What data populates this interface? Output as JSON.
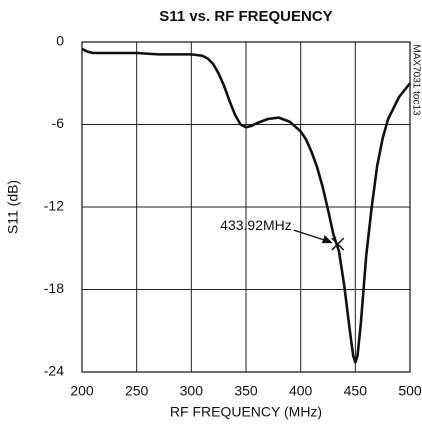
{
  "chart_data": {
    "type": "line",
    "title": "S11 vs. RF FREQUENCY",
    "x_label": "RF FREQUENCY (MHz)",
    "y_label": "S11 (dB)",
    "figure_id": "MAX7031 toc13",
    "xlim": [
      200,
      500
    ],
    "xticks": [
      200,
      250,
      300,
      350,
      400,
      450,
      500
    ],
    "ylim": [
      -24,
      0
    ],
    "yticks": [
      0,
      -6,
      -12,
      -18,
      -24
    ],
    "grid": true,
    "series": [
      {
        "name": "S11",
        "color": "#111111",
        "x": [
          200,
          205,
          210,
          230,
          250,
          270,
          290,
          300,
          310,
          315,
          320,
          325,
          330,
          335,
          340,
          345,
          350,
          355,
          360,
          370,
          380,
          390,
          400,
          405,
          410,
          415,
          420,
          425,
          430,
          435,
          440,
          445,
          448,
          450,
          452,
          455,
          460,
          465,
          470,
          475,
          480,
          490,
          500
        ],
        "values": [
          -0.5,
          -0.7,
          -0.8,
          -0.8,
          -0.8,
          -0.9,
          -0.9,
          -0.9,
          -1.0,
          -1.2,
          -1.6,
          -2.3,
          -3.2,
          -4.3,
          -5.3,
          -6.0,
          -6.2,
          -6.1,
          -5.9,
          -5.6,
          -5.5,
          -5.8,
          -6.5,
          -7.1,
          -8.0,
          -9.1,
          -10.5,
          -12.2,
          -14.0,
          -15.2,
          -17.8,
          -21.0,
          -22.8,
          -23.3,
          -22.8,
          -20.5,
          -15.5,
          -12.0,
          -9.0,
          -7.0,
          -5.6,
          -4.0,
          -3.0
        ]
      }
    ],
    "annotation": {
      "text": "433.92MHz",
      "x": 433.92,
      "y": -14.7
    }
  }
}
